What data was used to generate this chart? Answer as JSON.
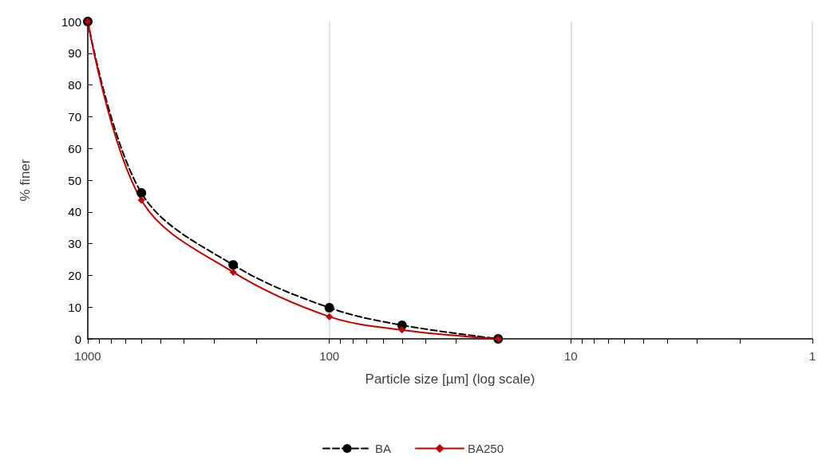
{
  "chart_data": {
    "type": "line",
    "xlabel": "Particle size [µm] (log scale)",
    "ylabel": "% finer",
    "log": "x",
    "x": [
      1000,
      600,
      250,
      100,
      50,
      20
    ],
    "series": [
      {
        "name": "BA",
        "color": "#000000",
        "values": [
          100,
          46,
          23.3,
          9.8,
          4.3,
          0
        ],
        "marker": "circle",
        "line_style": "dashed"
      },
      {
        "name": "BA250",
        "color": "#c00000",
        "values": [
          100,
          43.7,
          21,
          7,
          2.8,
          0
        ],
        "marker": "diamond",
        "line_style": "solid"
      }
    ],
    "xlim": [
      1000,
      1
    ],
    "xticks": [
      1000,
      {
        "value": 900,
        "label": null
      },
      {
        "value": 800,
        "label": null
      },
      {
        "value": 700,
        "label": null
      },
      {
        "value": 600,
        "label": null
      },
      {
        "value": 500,
        "label": null
      },
      {
        "value": 400,
        "label": null
      },
      {
        "value": 300,
        "label": null
      },
      {
        "value": 200,
        "label": null
      },
      100,
      {
        "value": 90,
        "label": null
      },
      {
        "value": 80,
        "label": null
      },
      {
        "value": 70,
        "label": null
      },
      {
        "value": 60,
        "label": null
      },
      {
        "value": 50,
        "label": null
      },
      {
        "value": 40,
        "label": null
      },
      {
        "value": 30,
        "label": null
      },
      {
        "value": 20,
        "label": null
      },
      10,
      {
        "value": 9,
        "label": null
      },
      {
        "value": 8,
        "label": null
      },
      {
        "value": 7,
        "label": null
      },
      {
        "value": 6,
        "label": null
      },
      {
        "value": 5,
        "label": null
      },
      {
        "value": 4,
        "label": null
      },
      {
        "value": 3,
        "label": null
      },
      {
        "value": 2,
        "label": null
      },
      1
    ],
    "ylim": [
      0,
      100
    ],
    "yticks": [
      0,
      10,
      20,
      30,
      40,
      50,
      60,
      70,
      80,
      90,
      100
    ],
    "grid": "x",
    "legend": "bottom"
  }
}
